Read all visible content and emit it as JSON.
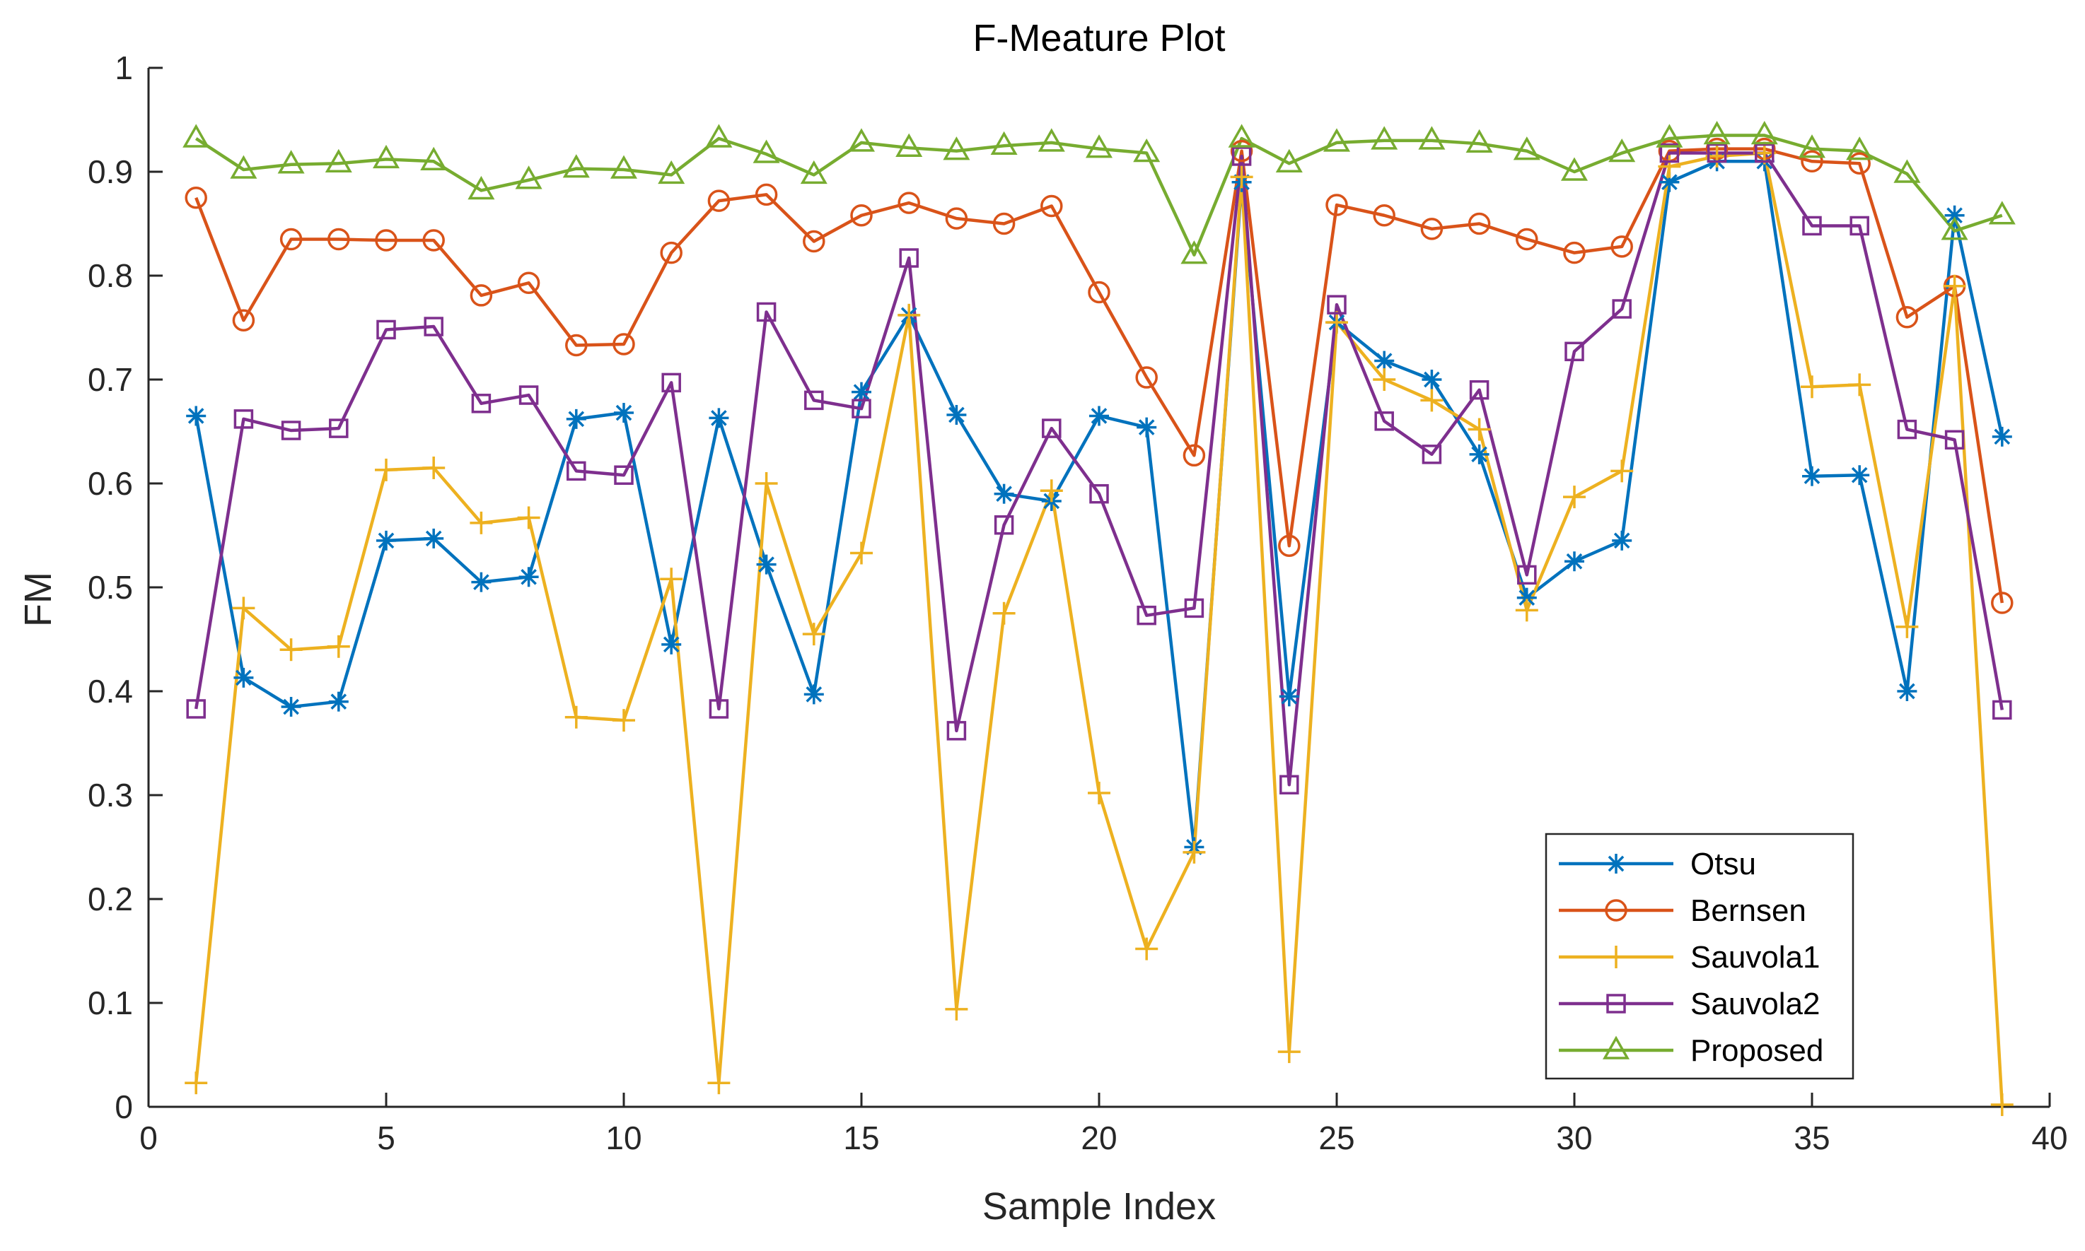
{
  "chart_data": {
    "type": "line",
    "title": "F-Meature Plot",
    "xlabel": "Sample Index",
    "ylabel": "FM",
    "xlim": [
      0,
      40
    ],
    "ylim": [
      0,
      1
    ],
    "xticks": [
      0,
      5,
      10,
      15,
      20,
      25,
      30,
      35,
      40
    ],
    "yticks": [
      0,
      0.1,
      0.2,
      0.3,
      0.4,
      0.5,
      0.6,
      0.7,
      0.8,
      0.9,
      1
    ],
    "ytick_labels": [
      "0",
      "0.1",
      "0.2",
      "0.3",
      "0.4",
      "0.5",
      "0.6",
      "0.7",
      "0.8",
      "0.9",
      "1"
    ],
    "grid": false,
    "legend_position": "bottom-right",
    "x": [
      1,
      2,
      3,
      4,
      5,
      6,
      7,
      8,
      9,
      10,
      11,
      12,
      13,
      14,
      15,
      16,
      17,
      18,
      19,
      20,
      21,
      22,
      23,
      24,
      25,
      26,
      27,
      28,
      29,
      30,
      31,
      32,
      33,
      34,
      35,
      36,
      37,
      38,
      39
    ],
    "series": [
      {
        "name": "Otsu",
        "color": "#0072BD",
        "marker": "asterisk",
        "values": [
          0.665,
          0.413,
          0.385,
          0.39,
          0.545,
          0.547,
          0.505,
          0.51,
          0.662,
          0.668,
          0.445,
          0.663,
          0.522,
          0.397,
          0.688,
          0.762,
          0.666,
          0.59,
          0.583,
          0.665,
          0.654,
          0.25,
          0.89,
          0.395,
          0.755,
          0.718,
          0.7,
          0.628,
          0.49,
          0.525,
          0.545,
          0.89,
          0.91,
          0.91,
          0.607,
          0.608,
          0.4,
          0.858,
          0.645
        ]
      },
      {
        "name": "Bernsen",
        "color": "#D95319",
        "marker": "circle",
        "values": [
          0.875,
          0.757,
          0.835,
          0.835,
          0.834,
          0.834,
          0.781,
          0.793,
          0.733,
          0.734,
          0.822,
          0.872,
          0.878,
          0.833,
          0.858,
          0.87,
          0.855,
          0.85,
          0.867,
          0.784,
          0.702,
          0.627,
          0.92,
          0.54,
          0.868,
          0.858,
          0.845,
          0.85,
          0.835,
          0.822,
          0.828,
          0.92,
          0.922,
          0.922,
          0.91,
          0.908,
          0.76,
          0.79,
          0.485
        ]
      },
      {
        "name": "Sauvola1",
        "color": "#EDB120",
        "marker": "plus",
        "values": [
          0.023,
          0.48,
          0.44,
          0.443,
          0.613,
          0.615,
          0.562,
          0.567,
          0.375,
          0.372,
          0.508,
          0.023,
          0.6,
          0.455,
          0.533,
          0.762,
          0.094,
          0.475,
          0.593,
          0.302,
          0.152,
          0.245,
          0.895,
          0.053,
          0.755,
          0.7,
          0.68,
          0.652,
          0.478,
          0.587,
          0.612,
          0.905,
          0.915,
          0.918,
          0.693,
          0.695,
          0.462,
          0.79,
          0.002
        ]
      },
      {
        "name": "Sauvola2",
        "color": "#7E2F8E",
        "marker": "square",
        "values": [
          0.383,
          0.662,
          0.651,
          0.653,
          0.748,
          0.751,
          0.677,
          0.685,
          0.612,
          0.608,
          0.697,
          0.383,
          0.765,
          0.68,
          0.672,
          0.817,
          0.362,
          0.56,
          0.653,
          0.59,
          0.473,
          0.48,
          0.915,
          0.31,
          0.772,
          0.66,
          0.628,
          0.69,
          0.512,
          0.727,
          0.768,
          0.918,
          0.918,
          0.918,
          0.848,
          0.848,
          0.652,
          0.642,
          0.382
        ]
      },
      {
        "name": "Proposed",
        "color": "#77AC30",
        "marker": "triangle",
        "values": [
          0.932,
          0.902,
          0.907,
          0.908,
          0.912,
          0.91,
          0.882,
          0.892,
          0.903,
          0.902,
          0.897,
          0.932,
          0.917,
          0.897,
          0.928,
          0.923,
          0.92,
          0.925,
          0.928,
          0.922,
          0.918,
          0.82,
          0.932,
          0.908,
          0.928,
          0.93,
          0.93,
          0.927,
          0.92,
          0.9,
          0.918,
          0.932,
          0.935,
          0.935,
          0.922,
          0.92,
          0.898,
          0.843,
          0.858
        ]
      }
    ]
  }
}
